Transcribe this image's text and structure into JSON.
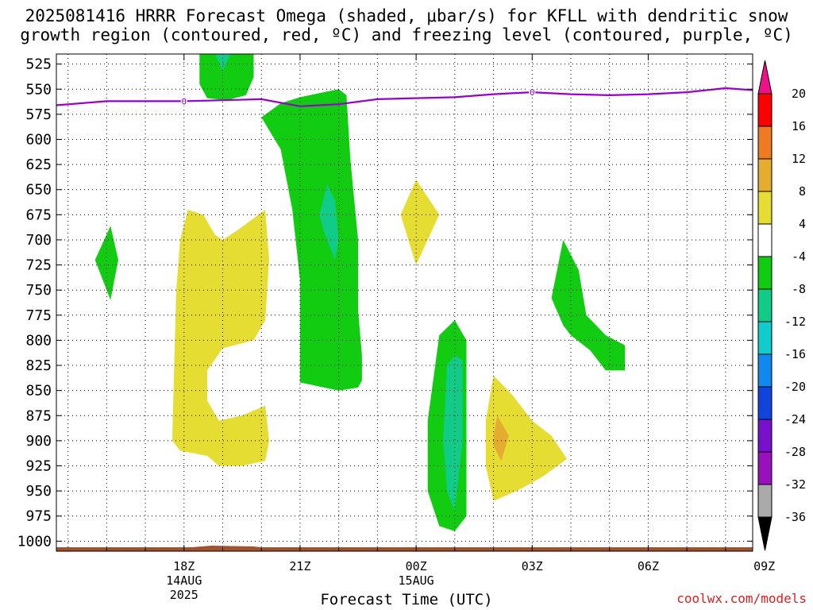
{
  "title_line1": "2025081416 HRRR Forecast Omega (shaded, μbar/s) for KFLL with dendritic snow",
  "title_line2": "growth region (contoured, red, ºC) and freezing level (contoured, purple, ºC)",
  "credit": "coolwx.com/models",
  "chart_data": {
    "type": "contour",
    "xlabel": "Forecast Time (UTC)",
    "x_unit": "hours from 2025-08-14 18Z",
    "xlim": [
      -3.3,
      14.7
    ],
    "x_ticks": [
      {
        "x": 0,
        "lines": [
          "18Z",
          "14AUG",
          "2025"
        ]
      },
      {
        "x": 3,
        "lines": [
          "21Z"
        ]
      },
      {
        "x": 6,
        "lines": [
          "00Z",
          "15AUG"
        ]
      },
      {
        "x": 9,
        "lines": [
          "03Z"
        ]
      },
      {
        "x": 12,
        "lines": [
          "06Z"
        ]
      },
      {
        "x": 15,
        "lines": [
          "09Z"
        ]
      }
    ],
    "y_unit": "hPa",
    "ylim": [
      1010,
      515
    ],
    "y_ticks": [
      525,
      550,
      575,
      600,
      625,
      650,
      675,
      700,
      725,
      750,
      775,
      800,
      825,
      850,
      875,
      900,
      925,
      950,
      975,
      1000
    ],
    "grid": true,
    "colorbar": {
      "labels": [
        "20",
        "16",
        "12",
        "8",
        "4",
        "-4",
        "-8",
        "-12",
        "-16",
        "-20",
        "-24",
        "-28",
        "-32",
        "-36"
      ],
      "colors": [
        "#ff0000",
        "#ee7a22",
        "#e5ad30",
        "#e6dd33",
        "#ffffff",
        "#11cc11",
        "#11cc88",
        "#11cccc",
        "#1188ee",
        "#1144dd",
        "#7711cc",
        "#9911bb",
        "#aaaaaa"
      ],
      "top_arrow_color": "#ee1188",
      "bottom_arrow_color": "#000000"
    },
    "freezing_level": {
      "color": "#9900cc",
      "label": "0",
      "label_points": [
        [
          0,
          562
        ],
        [
          9,
          553
        ]
      ],
      "points": [
        [
          -3.3,
          566
        ],
        [
          -2,
          562
        ],
        [
          0,
          562
        ],
        [
          1,
          561
        ],
        [
          2,
          560
        ],
        [
          3,
          567
        ],
        [
          4,
          565
        ],
        [
          5,
          560
        ],
        [
          6,
          559
        ],
        [
          7,
          558
        ],
        [
          8,
          555
        ],
        [
          9,
          553
        ],
        [
          10,
          555
        ],
        [
          11,
          556
        ],
        [
          12,
          555
        ],
        [
          13,
          553
        ],
        [
          14,
          549
        ],
        [
          14.7,
          551
        ]
      ]
    },
    "ground": {
      "color": "#a0522d",
      "pressure": 1013
    },
    "omega_regions": [
      {
        "value": -6,
        "color": "#11cc11",
        "points": [
          [
            0.4,
            509
          ],
          [
            1.8,
            509
          ],
          [
            1.8,
            538
          ],
          [
            1.6,
            556
          ],
          [
            1.1,
            561
          ],
          [
            0.6,
            559
          ],
          [
            0.4,
            545
          ]
        ]
      },
      {
        "value": -10,
        "color": "#11cc88",
        "points": [
          [
            0.8,
            509
          ],
          [
            1.2,
            509
          ],
          [
            1.0,
            532
          ]
        ]
      },
      {
        "value": -6,
        "color": "#11cc11",
        "points": [
          [
            2.0,
            578
          ],
          [
            2.5,
            564
          ],
          [
            3.0,
            558
          ],
          [
            3.5,
            554
          ],
          [
            4.0,
            550
          ],
          [
            4.2,
            556
          ],
          [
            4.3,
            620
          ],
          [
            4.5,
            700
          ],
          [
            4.5,
            770
          ],
          [
            4.6,
            815
          ],
          [
            4.6,
            840
          ],
          [
            4.5,
            847
          ],
          [
            4.0,
            850
          ],
          [
            3.5,
            846
          ],
          [
            3.0,
            842
          ],
          [
            3.0,
            800
          ],
          [
            3.0,
            740
          ],
          [
            2.8,
            670
          ],
          [
            2.5,
            610
          ]
        ]
      },
      {
        "value": -10,
        "color": "#11cc88",
        "points": [
          [
            3.7,
            645
          ],
          [
            3.9,
            660
          ],
          [
            4.0,
            700
          ],
          [
            3.9,
            720
          ],
          [
            3.6,
            690
          ],
          [
            3.5,
            675
          ]
        ]
      },
      {
        "value": -6,
        "color": "#11cc11",
        "points": [
          [
            -2.3,
            720
          ],
          [
            -1.9,
            686
          ],
          [
            -1.7,
            720
          ],
          [
            -1.9,
            760
          ]
        ]
      },
      {
        "value": -6,
        "color": "#11cc11",
        "points": [
          [
            6.3,
            880
          ],
          [
            6.6,
            795
          ],
          [
            7.0,
            780
          ],
          [
            7.3,
            800
          ],
          [
            7.3,
            900
          ],
          [
            7.3,
            975
          ],
          [
            7.0,
            990
          ],
          [
            6.6,
            985
          ],
          [
            6.3,
            950
          ]
        ]
      },
      {
        "value": -10,
        "color": "#11cc88",
        "points": [
          [
            6.8,
            825
          ],
          [
            7.0,
            815
          ],
          [
            7.2,
            820
          ],
          [
            7.2,
            900
          ],
          [
            7.0,
            970
          ],
          [
            6.8,
            950
          ],
          [
            6.7,
            900
          ]
        ]
      },
      {
        "value": -6,
        "color": "#11cc11",
        "points": [
          [
            9.5,
            758
          ],
          [
            9.8,
            700
          ],
          [
            10.2,
            730
          ],
          [
            10.4,
            775
          ],
          [
            10.9,
            795
          ],
          [
            11.4,
            805
          ],
          [
            11.4,
            830
          ],
          [
            10.9,
            830
          ],
          [
            10.5,
            810
          ],
          [
            10.0,
            795
          ],
          [
            9.8,
            785
          ]
        ]
      }
    ],
    "omega_positive_regions": [
      {
        "value": 6,
        "color": "#e6dd33",
        "points": [
          [
            -0.3,
            890
          ],
          [
            -0.2,
            750
          ],
          [
            -0.1,
            700
          ],
          [
            0.1,
            670
          ],
          [
            0.5,
            675
          ],
          [
            0.8,
            695
          ],
          [
            1.0,
            700
          ],
          [
            1.4,
            690
          ],
          [
            2.1,
            670
          ],
          [
            2.2,
            720
          ],
          [
            2.1,
            780
          ],
          [
            1.8,
            800
          ],
          [
            1.0,
            808
          ],
          [
            0.6,
            830
          ],
          [
            0.6,
            860
          ],
          [
            0.9,
            880
          ],
          [
            1.5,
            875
          ],
          [
            2.1,
            865
          ],
          [
            2.2,
            900
          ],
          [
            2.1,
            920
          ],
          [
            1.5,
            925
          ],
          [
            0.9,
            925
          ],
          [
            0.6,
            915
          ],
          [
            -0.1,
            910
          ],
          [
            -0.3,
            900
          ]
        ]
      },
      {
        "value": 6,
        "color": "#e6dd33",
        "points": [
          [
            5.6,
            675
          ],
          [
            6.0,
            640
          ],
          [
            6.6,
            675
          ],
          [
            6.0,
            725
          ]
        ]
      },
      {
        "value": 6,
        "color": "#e6dd33",
        "points": [
          [
            7.8,
            880
          ],
          [
            8.0,
            835
          ],
          [
            8.5,
            855
          ],
          [
            9.0,
            880
          ],
          [
            9.5,
            895
          ],
          [
            9.9,
            918
          ],
          [
            9.3,
            935
          ],
          [
            8.7,
            948
          ],
          [
            8.0,
            960
          ],
          [
            7.8,
            925
          ]
        ]
      },
      {
        "value": 10,
        "color": "#e5ad30",
        "points": [
          [
            8.0,
            895
          ],
          [
            8.1,
            875
          ],
          [
            8.4,
            895
          ],
          [
            8.2,
            920
          ],
          [
            8.0,
            905
          ]
        ]
      }
    ]
  }
}
